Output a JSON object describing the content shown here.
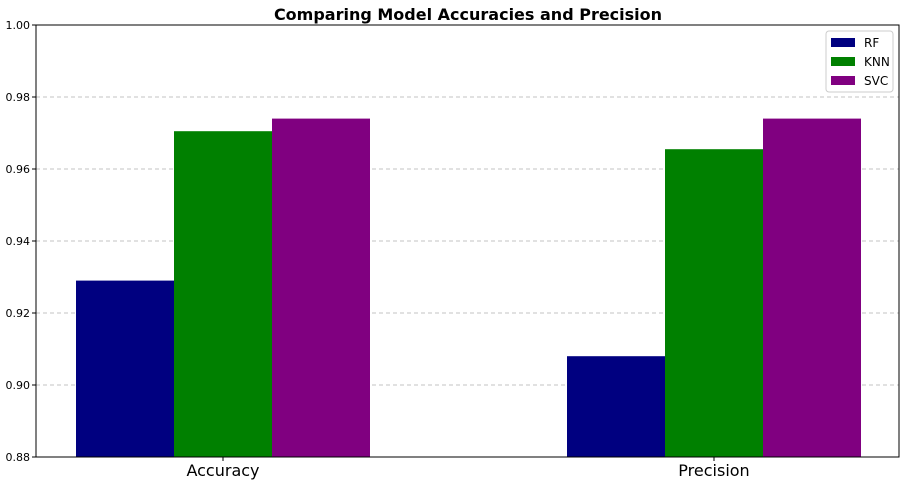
{
  "chart_data": {
    "type": "bar",
    "title": "Comparing Model Accuracies and Precision",
    "categories": [
      "Accuracy",
      "Precision"
    ],
    "series": [
      {
        "name": "RF",
        "values": [
          0.929,
          0.908
        ],
        "color": "#000080"
      },
      {
        "name": "KNN",
        "values": [
          0.9705,
          0.9655
        ],
        "color": "#008000"
      },
      {
        "name": "SVC",
        "values": [
          0.974,
          0.974
        ],
        "color": "#800080"
      }
    ],
    "ylim": [
      0.88,
      1.0
    ],
    "yticks": [
      "0.88",
      "0.90",
      "0.92",
      "0.94",
      "0.96",
      "0.98",
      "1.00"
    ],
    "grid": "y-dashed",
    "legend_position": "top-right"
  }
}
